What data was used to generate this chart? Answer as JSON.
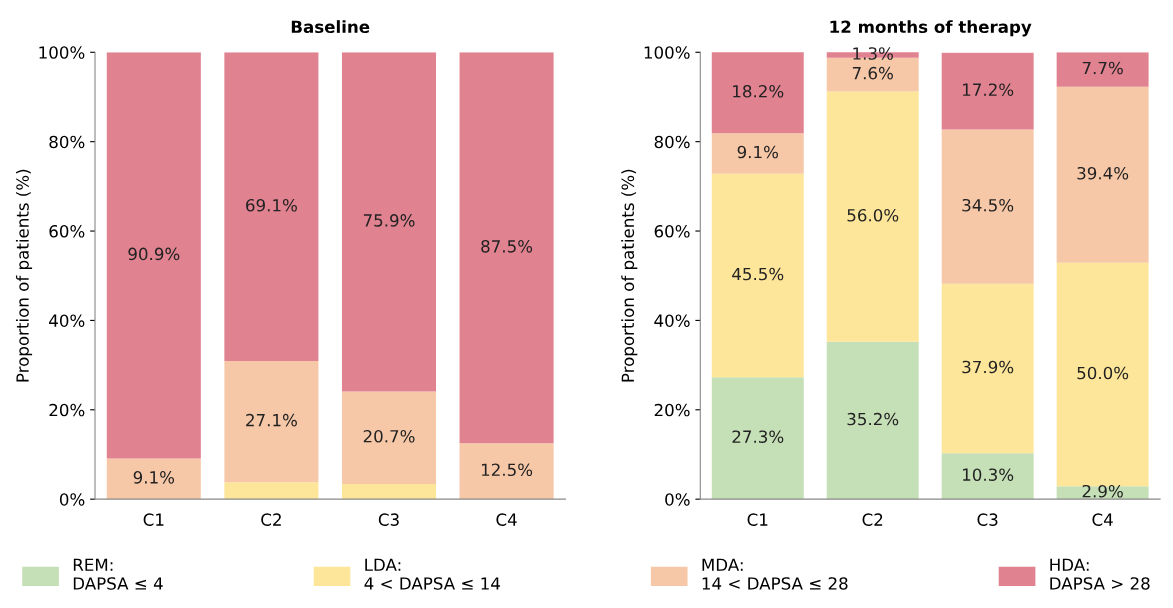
{
  "chart_data": [
    {
      "type": "bar",
      "stacked": true,
      "title": "Baseline",
      "ylabel": "Proportion of patients (%)",
      "categories": [
        "C1",
        "C2",
        "C3",
        "C4"
      ],
      "ylim": [
        0,
        100
      ],
      "yticks": [
        {
          "value": 0,
          "label": "0%"
        },
        {
          "value": 20,
          "label": "20%"
        },
        {
          "value": 40,
          "label": "40%"
        },
        {
          "value": 60,
          "label": "60%"
        },
        {
          "value": 80,
          "label": "80%"
        },
        {
          "value": 100,
          "label": "100%"
        }
      ],
      "legend": "bottom",
      "series": [
        {
          "name": "REM:\nDAPSA ≤ 4",
          "color": "#c5dfb6",
          "values": [
            0,
            0,
            0,
            0
          ],
          "value_labels": [
            null,
            null,
            null,
            null
          ]
        },
        {
          "name": "LDA:\n4 < DAPSA ≤ 14",
          "color": "#fde699",
          "values": [
            0,
            3.8,
            3.4,
            0
          ],
          "value_labels": [
            null,
            null,
            null,
            null
          ]
        },
        {
          "name": "MDA:\n14 < DAPSA ≤ 28",
          "color": "#f7c8a8",
          "values": [
            9.1,
            27.1,
            20.7,
            12.5
          ],
          "value_labels": [
            "9.1%",
            "27.1%",
            "20.7%",
            "12.5%"
          ]
        },
        {
          "name": "HDA:\nDAPSA > 28",
          "color": "#e08290",
          "values": [
            90.9,
            69.1,
            75.9,
            87.5
          ],
          "value_labels": [
            "90.9%",
            "69.1%",
            "75.9%",
            "87.5%"
          ]
        }
      ]
    },
    {
      "type": "bar",
      "stacked": true,
      "title": "12 months of therapy",
      "ylabel": "Proportion of patients (%)",
      "categories": [
        "C1",
        "C2",
        "C3",
        "C4"
      ],
      "ylim": [
        0,
        100
      ],
      "yticks": [
        {
          "value": 0,
          "label": "0%"
        },
        {
          "value": 20,
          "label": "20%"
        },
        {
          "value": 40,
          "label": "40%"
        },
        {
          "value": 60,
          "label": "60%"
        },
        {
          "value": 80,
          "label": "80%"
        },
        {
          "value": 100,
          "label": "100%"
        }
      ],
      "series": [
        {
          "color": "#c5dfb6",
          "values": [
            27.3,
            35.2,
            10.3,
            2.9
          ],
          "value_labels": [
            "27.3%",
            "35.2%",
            "10.3%",
            "2.9%"
          ]
        },
        {
          "color": "#fde699",
          "values": [
            45.5,
            56.0,
            37.9,
            50.0
          ],
          "value_labels": [
            "45.5%",
            "56.0%",
            "37.9%",
            "50.0%"
          ]
        },
        {
          "color": "#f7c8a8",
          "values": [
            9.1,
            7.6,
            34.5,
            39.4
          ],
          "value_labels": [
            "9.1%",
            "7.6%",
            "34.5%",
            "39.4%"
          ]
        },
        {
          "color": "#e08290",
          "values": [
            18.2,
            1.3,
            17.2,
            7.7
          ],
          "value_labels": [
            "18.2%",
            "1.3%",
            "17.2%",
            "7.7%"
          ]
        }
      ]
    }
  ]
}
